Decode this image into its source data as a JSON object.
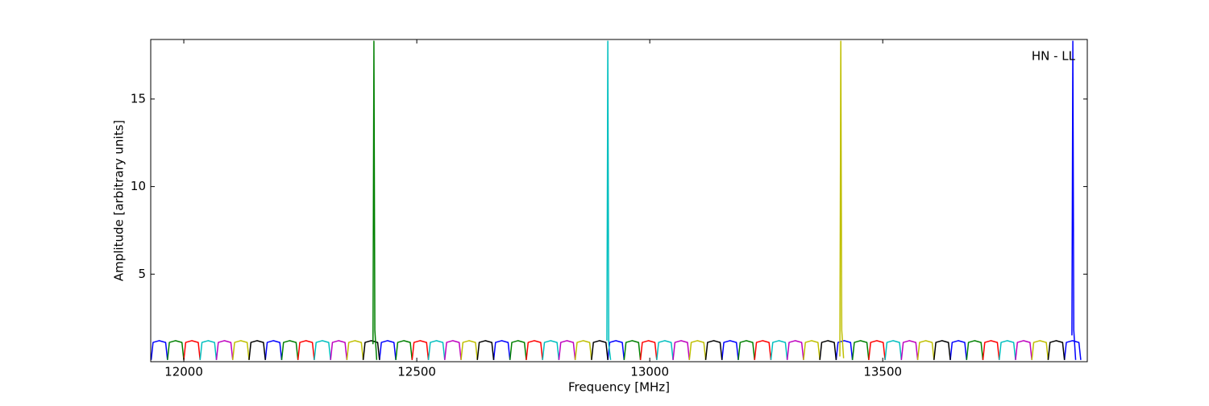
{
  "chart_data": {
    "type": "line",
    "annotation": "HN - LL",
    "xlabel": "Frequency [MHz]",
    "ylabel": "Amplitude [arbitrary units]",
    "xlim": [
      11929,
      13939
    ],
    "ylim": [
      0,
      18.4
    ],
    "xticks": [
      12000,
      12500,
      13000,
      13500
    ],
    "yticks": [
      5,
      10,
      15
    ],
    "series": [
      {
        "color": "#0000ff",
        "x": [
          11930,
          11934,
          11947,
          11961,
          11965,
          null,
          12175,
          12179,
          12192,
          12206,
          12210,
          null,
          12420,
          12424,
          12437,
          12451,
          12455,
          null,
          12665,
          12669,
          12682,
          12696,
          12700,
          null,
          12910,
          12914,
          12927,
          12941,
          12945,
          null,
          13155,
          13159,
          13172,
          13186,
          13190,
          null,
          13400,
          13404,
          13417,
          13431,
          13435,
          null,
          13645,
          13649,
          13662,
          13676,
          13680,
          null,
          13890,
          13894,
          13907,
          13921,
          13925
        ],
        "values": [
          0.1,
          1.1,
          1.2,
          1.1,
          0.1,
          null,
          0.1,
          1.1,
          1.2,
          1.1,
          0.1,
          null,
          0.1,
          1.1,
          1.2,
          1.1,
          0.1,
          null,
          0.1,
          1.1,
          1.2,
          1.1,
          0.1,
          null,
          0.1,
          1.1,
          1.2,
          1.1,
          0.1,
          null,
          0.1,
          1.1,
          1.2,
          1.1,
          0.1,
          null,
          0.1,
          1.1,
          1.2,
          1.1,
          0.1,
          null,
          0.1,
          1.1,
          1.2,
          1.1,
          0.1,
          null,
          0.1,
          1.1,
          1.2,
          1.1,
          0.1
        ]
      },
      {
        "color": "#008000",
        "x": [
          11965,
          11969,
          11982,
          11996,
          12000,
          null,
          12210,
          12214,
          12227,
          12241,
          12245,
          null,
          12455,
          12459,
          12472,
          12486,
          12490,
          null,
          12700,
          12704,
          12717,
          12731,
          12735,
          null,
          12945,
          12949,
          12962,
          12976,
          12980,
          null,
          13190,
          13194,
          13207,
          13221,
          13225,
          null,
          13435,
          13439,
          13452,
          13466,
          13470,
          null,
          13680,
          13684,
          13697,
          13711,
          13715
        ],
        "values": [
          0.1,
          1.1,
          1.2,
          1.1,
          0.1,
          null,
          0.1,
          1.1,
          1.2,
          1.1,
          0.1,
          null,
          0.1,
          1.1,
          1.2,
          1.1,
          0.1,
          null,
          0.1,
          1.1,
          1.2,
          1.1,
          0.1,
          null,
          0.1,
          1.1,
          1.2,
          1.1,
          0.1,
          null,
          0.1,
          1.1,
          1.2,
          1.1,
          0.1,
          null,
          0.1,
          1.1,
          1.2,
          1.1,
          0.1,
          null,
          0.1,
          1.1,
          1.2,
          1.1,
          0.1
        ]
      },
      {
        "color": "#ff0000",
        "x": [
          12000,
          12004,
          12017,
          12031,
          12035,
          null,
          12245,
          12249,
          12262,
          12276,
          12280,
          null,
          12490,
          12494,
          12507,
          12521,
          12525,
          null,
          12735,
          12739,
          12752,
          12766,
          12770,
          null,
          12980,
          12984,
          12997,
          13011,
          13015,
          null,
          13225,
          13229,
          13242,
          13256,
          13260,
          null,
          13470,
          13474,
          13487,
          13501,
          13505,
          null,
          13715,
          13719,
          13732,
          13746,
          13750
        ],
        "values": [
          0.1,
          1.1,
          1.2,
          1.1,
          0.1,
          null,
          0.1,
          1.1,
          1.2,
          1.1,
          0.1,
          null,
          0.1,
          1.1,
          1.2,
          1.1,
          0.1,
          null,
          0.1,
          1.1,
          1.2,
          1.1,
          0.1,
          null,
          0.1,
          1.1,
          1.2,
          1.1,
          0.1,
          null,
          0.1,
          1.1,
          1.2,
          1.1,
          0.1,
          null,
          0.1,
          1.1,
          1.2,
          1.1,
          0.1,
          null,
          0.1,
          1.1,
          1.2,
          1.1,
          0.1
        ]
      },
      {
        "color": "#00bfbf",
        "x": [
          12035,
          12039,
          12052,
          12066,
          12070,
          null,
          12280,
          12284,
          12297,
          12311,
          12315,
          null,
          12525,
          12529,
          12542,
          12556,
          12560,
          null,
          12770,
          12774,
          12787,
          12801,
          12805,
          null,
          13015,
          13019,
          13032,
          13046,
          13050,
          null,
          13260,
          13264,
          13277,
          13291,
          13295,
          null,
          13505,
          13509,
          13522,
          13536,
          13540,
          null,
          13750,
          13754,
          13767,
          13781,
          13785
        ],
        "values": [
          0.1,
          1.1,
          1.2,
          1.1,
          0.1,
          null,
          0.1,
          1.1,
          1.2,
          1.1,
          0.1,
          null,
          0.1,
          1.1,
          1.2,
          1.1,
          0.1,
          null,
          0.1,
          1.1,
          1.2,
          1.1,
          0.1,
          null,
          0.1,
          1.1,
          1.2,
          1.1,
          0.1,
          null,
          0.1,
          1.1,
          1.2,
          1.1,
          0.1,
          null,
          0.1,
          1.1,
          1.2,
          1.1,
          0.1,
          null,
          0.1,
          1.1,
          1.2,
          1.1,
          0.1
        ]
      },
      {
        "color": "#bf00bf",
        "x": [
          12070,
          12074,
          12087,
          12101,
          12105,
          null,
          12315,
          12319,
          12332,
          12346,
          12350,
          null,
          12560,
          12564,
          12577,
          12591,
          12595,
          null,
          12805,
          12809,
          12822,
          12836,
          12840,
          null,
          13050,
          13054,
          13067,
          13081,
          13085,
          null,
          13295,
          13299,
          13312,
          13326,
          13330,
          null,
          13540,
          13544,
          13557,
          13571,
          13575,
          null,
          13785,
          13789,
          13802,
          13816,
          13820
        ],
        "values": [
          0.1,
          1.1,
          1.2,
          1.1,
          0.1,
          null,
          0.1,
          1.1,
          1.2,
          1.1,
          0.1,
          null,
          0.1,
          1.1,
          1.2,
          1.1,
          0.1,
          null,
          0.1,
          1.1,
          1.2,
          1.1,
          0.1,
          null,
          0.1,
          1.1,
          1.2,
          1.1,
          0.1,
          null,
          0.1,
          1.1,
          1.2,
          1.1,
          0.1,
          null,
          0.1,
          1.1,
          1.2,
          1.1,
          0.1,
          null,
          0.1,
          1.1,
          1.2,
          1.1,
          0.1
        ]
      },
      {
        "color": "#bfbf00",
        "x": [
          12105,
          12109,
          12122,
          12136,
          12140,
          null,
          12350,
          12354,
          12367,
          12381,
          12385,
          null,
          12595,
          12599,
          12612,
          12626,
          12630,
          null,
          12840,
          12844,
          12857,
          12871,
          12875,
          null,
          13085,
          13089,
          13102,
          13116,
          13120,
          null,
          13330,
          13334,
          13347,
          13361,
          13365,
          null,
          13575,
          13579,
          13592,
          13606,
          13610,
          null,
          13820,
          13824,
          13837,
          13851,
          13855
        ],
        "values": [
          0.1,
          1.1,
          1.2,
          1.1,
          0.1,
          null,
          0.1,
          1.1,
          1.2,
          1.1,
          0.1,
          null,
          0.1,
          1.1,
          1.2,
          1.1,
          0.1,
          null,
          0.1,
          1.1,
          1.2,
          1.1,
          0.1,
          null,
          0.1,
          1.1,
          1.2,
          1.1,
          0.1,
          null,
          0.1,
          1.1,
          1.2,
          1.1,
          0.1,
          null,
          0.1,
          1.1,
          1.2,
          1.1,
          0.1,
          null,
          0.1,
          1.1,
          1.2,
          1.1,
          0.1
        ]
      },
      {
        "color": "#000000",
        "x": [
          12140,
          12144,
          12157,
          12171,
          12175,
          null,
          12385,
          12389,
          12402,
          12416,
          12420,
          null,
          12630,
          12634,
          12647,
          12661,
          12665,
          null,
          12875,
          12879,
          12892,
          12906,
          12910,
          null,
          13120,
          13124,
          13137,
          13151,
          13155,
          null,
          13365,
          13369,
          13382,
          13396,
          13400,
          null,
          13610,
          13614,
          13627,
          13641,
          13645,
          null,
          13855,
          13859,
          13872,
          13886,
          13890
        ],
        "values": [
          0.1,
          1.1,
          1.2,
          1.1,
          0.1,
          null,
          0.1,
          1.1,
          1.2,
          1.1,
          0.1,
          null,
          0.1,
          1.1,
          1.2,
          1.1,
          0.1,
          null,
          0.1,
          1.1,
          1.2,
          1.1,
          0.1,
          null,
          0.1,
          1.1,
          1.2,
          1.1,
          0.1,
          null,
          0.1,
          1.1,
          1.2,
          1.1,
          0.1,
          null,
          0.1,
          1.1,
          1.2,
          1.1,
          0.1,
          null,
          0.1,
          1.1,
          1.2,
          1.1,
          0.1
        ]
      },
      {
        "color": "#008000",
        "x": [
          12406,
          12408,
          12410,
          12414
        ],
        "values": [
          1.0,
          18.3,
          1.8,
          0.1
        ]
      },
      {
        "color": "#00bfbf",
        "x": [
          12908,
          12910,
          12912,
          12916
        ],
        "values": [
          1.2,
          18.3,
          1.0,
          0.1
        ]
      },
      {
        "color": "#bfbf00",
        "x": [
          13408,
          13410,
          13412,
          13416
        ],
        "values": [
          0.3,
          18.3,
          1.8,
          0.2
        ]
      },
      {
        "color": "#0000ff",
        "x": [
          13906,
          13908,
          13910,
          13914
        ],
        "values": [
          1.5,
          18.3,
          1.8,
          0.1
        ]
      }
    ]
  }
}
